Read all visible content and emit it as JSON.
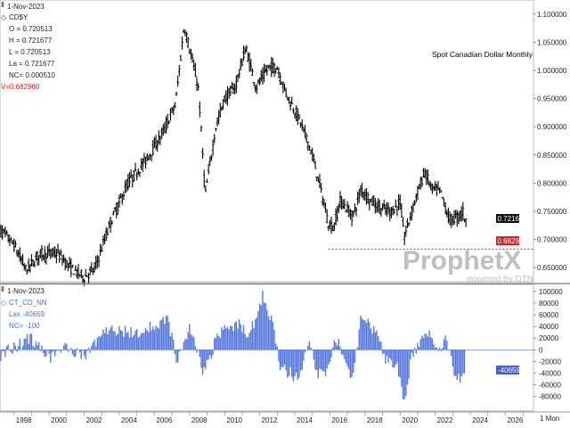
{
  "upper_panel": {
    "date": "1-Nov-2023",
    "symbol": "CD$Y",
    "open": "O = 0.720513",
    "high": "H = 0.721677",
    "low": "L = 0.720513",
    "last": "La = 0.721677",
    "net_change": "NC= 0.000510",
    "v_marker": "V=0.682960",
    "title": "Spot Canadian Dollar Monthly",
    "last_value_tag": "0.721677",
    "line_value_tag": "0.682960"
  },
  "lower_panel": {
    "date": "1-Nov-2023",
    "symbol": "CT_CD_NN",
    "last": "Lax -40659",
    "net_change": "NC=  -100",
    "value_tag": "-40659"
  },
  "watermark": {
    "brand": "ProphetX",
    "sub": "powered by DTN"
  },
  "x_axis": {
    "corner_label": "1 Mon"
  },
  "colors": {
    "bar": "#000000",
    "cot": "#5577dd",
    "support": "#e02020",
    "tag_dark": "#111111",
    "tag_red": "#c62828",
    "tag_blue": "#3f5fd0"
  },
  "chart_data": [
    {
      "type": "ohlc",
      "title": "Spot Canadian Dollar Monthly",
      "symbol": "CD$Y",
      "x_ticks": [
        "1998",
        "2000",
        "2002",
        "2004",
        "2006",
        "2008",
        "2010",
        "2012",
        "2014",
        "2016",
        "2018",
        "2020",
        "2022",
        "2024",
        "2026"
      ],
      "y_ticks": [
        "0.650000",
        "0.700000",
        "0.750000",
        "0.800000",
        "0.850000",
        "0.900000",
        "0.950000",
        "1.000000",
        "1.050000",
        "1.100000"
      ],
      "ylim": [
        0.625,
        1.125
      ],
      "xlim": [
        1997.2,
        2027.6
      ],
      "grid": false,
      "key_points": [
        [
          1997.0,
          0.725
        ],
        [
          1998.0,
          0.69
        ],
        [
          1998.7,
          0.645
        ],
        [
          1999.5,
          0.675
        ],
        [
          2000.5,
          0.675
        ],
        [
          2001.2,
          0.65
        ],
        [
          2002.0,
          0.633
        ],
        [
          2002.6,
          0.648
        ],
        [
          2003.5,
          0.73
        ],
        [
          2004.5,
          0.8
        ],
        [
          2005.5,
          0.84
        ],
        [
          2006.5,
          0.89
        ],
        [
          2007.2,
          0.94
        ],
        [
          2007.7,
          1.08
        ],
        [
          2008.5,
          0.97
        ],
        [
          2008.9,
          0.78
        ],
        [
          2009.5,
          0.9
        ],
        [
          2010.0,
          0.95
        ],
        [
          2010.6,
          0.97
        ],
        [
          2011.2,
          1.04
        ],
        [
          2011.8,
          0.97
        ],
        [
          2012.5,
          1.005
        ],
        [
          2013.0,
          1.005
        ],
        [
          2013.5,
          0.96
        ],
        [
          2014.3,
          0.91
        ],
        [
          2014.9,
          0.86
        ],
        [
          2015.4,
          0.8
        ],
        [
          2015.9,
          0.73
        ],
        [
          2016.2,
          0.72
        ],
        [
          2016.6,
          0.77
        ],
        [
          2017.3,
          0.74
        ],
        [
          2017.8,
          0.79
        ],
        [
          2018.3,
          0.77
        ],
        [
          2018.9,
          0.755
        ],
        [
          2019.5,
          0.75
        ],
        [
          2020.0,
          0.765
        ],
        [
          2020.25,
          0.705
        ],
        [
          2020.8,
          0.765
        ],
        [
          2021.4,
          0.82
        ],
        [
          2021.8,
          0.79
        ],
        [
          2022.3,
          0.785
        ],
        [
          2022.8,
          0.735
        ],
        [
          2023.3,
          0.74
        ],
        [
          2023.6,
          0.75
        ],
        [
          2023.8,
          0.722
        ]
      ],
      "last_value": 0.721677,
      "support_line": {
        "value": 0.68296,
        "from": 2015.9,
        "to": 2027.6
      }
    },
    {
      "type": "bar",
      "symbol": "CT_CD_NN",
      "y_ticks": [
        "-80000",
        "-60000",
        "-40000",
        "-20000",
        "0",
        "20000",
        "40000",
        "60000",
        "80000",
        "100000"
      ],
      "ylim": [
        -105000,
        112000
      ],
      "key_points": [
        [
          1997.0,
          -15000
        ],
        [
          1998.0,
          5000
        ],
        [
          1999.0,
          20000
        ],
        [
          2000.0,
          -15000
        ],
        [
          2001.0,
          5000
        ],
        [
          2002.0,
          -10000
        ],
        [
          2002.5,
          5000
        ],
        [
          2003.0,
          30000
        ],
        [
          2004.0,
          35000
        ],
        [
          2005.0,
          25000
        ],
        [
          2006.0,
          45000
        ],
        [
          2006.8,
          50000
        ],
        [
          2007.3,
          -25000
        ],
        [
          2008.0,
          40000
        ],
        [
          2008.8,
          -40000
        ],
        [
          2009.5,
          15000
        ],
        [
          2010.0,
          40000
        ],
        [
          2010.8,
          45000
        ],
        [
          2011.3,
          30000
        ],
        [
          2011.8,
          50000
        ],
        [
          2012.2,
          95000
        ],
        [
          2012.7,
          50000
        ],
        [
          2013.2,
          -30000
        ],
        [
          2013.7,
          -40000
        ],
        [
          2014.2,
          -50000
        ],
        [
          2014.8,
          10000
        ],
        [
          2015.3,
          -40000
        ],
        [
          2015.8,
          -35000
        ],
        [
          2016.3,
          20000
        ],
        [
          2016.8,
          -10000
        ],
        [
          2017.3,
          -55000
        ],
        [
          2017.8,
          65000
        ],
        [
          2018.3,
          40000
        ],
        [
          2018.8,
          20000
        ],
        [
          2019.3,
          -25000
        ],
        [
          2019.8,
          -20000
        ],
        [
          2020.25,
          -95000
        ],
        [
          2020.6,
          -20000
        ],
        [
          2021.2,
          20000
        ],
        [
          2021.8,
          30000
        ],
        [
          2022.2,
          -10000
        ],
        [
          2022.6,
          20000
        ],
        [
          2023.0,
          -30000
        ],
        [
          2023.4,
          -50000
        ],
        [
          2023.7,
          -40659
        ]
      ],
      "last_value": -40659
    }
  ]
}
